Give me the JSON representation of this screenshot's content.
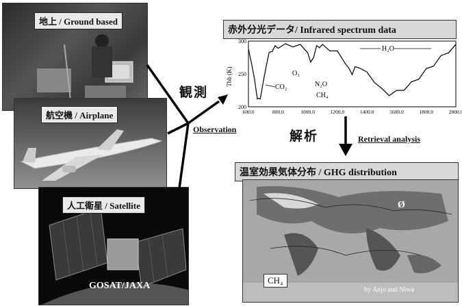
{
  "ground": {
    "label": "地上 / Ground based"
  },
  "airplane": {
    "label": "航空機 / Airplane"
  },
  "satellite": {
    "label": "人工衛星 / Satellite",
    "credit": "GOSAT/JAXA"
  },
  "arrows": {
    "observation_jp": "観測",
    "observation_en": "Observation",
    "retrieval_jp": "解析",
    "retrieval_en": "Retrieval analysis"
  },
  "spectrum": {
    "title": "赤外分光データ/ Infrared spectrum data",
    "ylabel": "Tbb (K)",
    "yticks": [
      "300",
      "250",
      "200"
    ],
    "xticks": [
      "600.0",
      "800.0",
      "1000.0",
      "1200.0",
      "1400.0",
      "1600.0",
      "1800.0",
      "2000.0"
    ],
    "labels": {
      "co2": "CO₂",
      "o3": "O₃",
      "n2o": "N₂O",
      "ch4": "CH₄",
      "h2o": "H₂O"
    }
  },
  "ghg": {
    "title": "温室効果気体分布 / GHG distribution",
    "species": "CH₄",
    "credit": "by Anjo and Niwa"
  },
  "chart_data": {
    "type": "line",
    "title": "赤外分光データ/ Infrared spectrum data",
    "xlabel": "",
    "ylabel": "Tbb (K)",
    "xlim": [
      600,
      2000
    ],
    "ylim": [
      200,
      300
    ],
    "series": [
      {
        "x": [
          600,
          620,
          640,
          660,
          667,
          680,
          700,
          720,
          740,
          760,
          780,
          800,
          850,
          900,
          950,
          1000,
          1020,
          1040,
          1060,
          1080,
          1100,
          1150,
          1200,
          1250,
          1280,
          1300,
          1320,
          1350,
          1400,
          1450,
          1500,
          1550,
          1600,
          1650,
          1700,
          1750,
          1800,
          1850,
          1900,
          1950,
          2000
        ],
        "values": [
          285,
          270,
          240,
          215,
          210,
          215,
          235,
          265,
          280,
          287,
          290,
          292,
          293,
          294,
          292,
          285,
          265,
          278,
          290,
          293,
          292,
          288,
          282,
          270,
          255,
          252,
          258,
          262,
          250,
          240,
          225,
          220,
          222,
          228,
          235,
          245,
          255,
          265,
          275,
          285,
          292
        ]
      }
    ]
  }
}
